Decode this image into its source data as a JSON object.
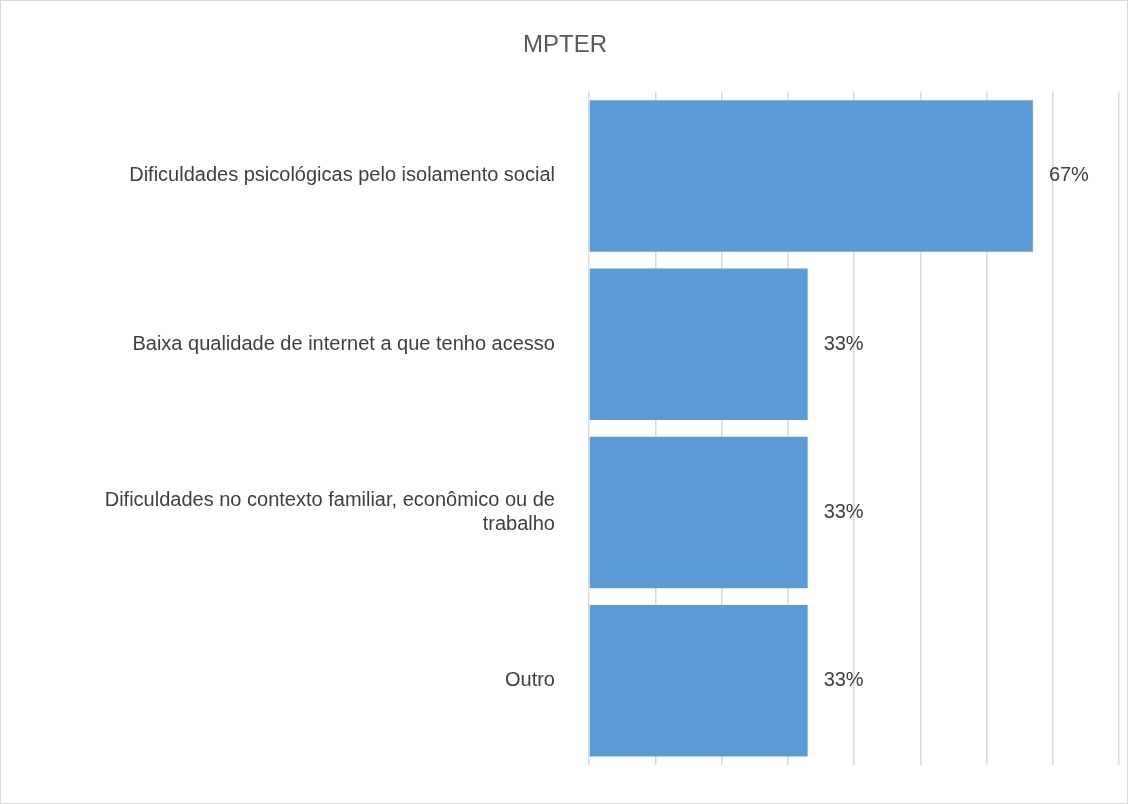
{
  "chart_data": {
    "type": "bar",
    "orientation": "horizontal",
    "title": "MPTER",
    "categories": [
      "Dificuldades psicológicas pelo isolamento social",
      "Baixa qualidade de internet a que tenho acesso",
      "Dificuldades no contexto familiar, econômico ou de trabalho",
      "Outro"
    ],
    "values": [
      67,
      33,
      33,
      33
    ],
    "color": "#5b9bd5",
    "value_labels": [
      "67%",
      "33%",
      "33%",
      "33%"
    ],
    "xlim": [
      0,
      80
    ],
    "xticks": [
      {
        "value": 0,
        "label": null
      },
      {
        "value": 10,
        "label": null
      },
      {
        "value": 20,
        "label": null
      },
      {
        "value": 30,
        "label": null
      },
      {
        "value": 40,
        "label": null
      },
      {
        "value": 50,
        "label": null
      },
      {
        "value": 60,
        "label": null
      },
      {
        "value": 70,
        "label": null
      },
      {
        "value": 80,
        "label": null
      }
    ],
    "grid": "x",
    "tick_labels": "y",
    "legend": false
  }
}
